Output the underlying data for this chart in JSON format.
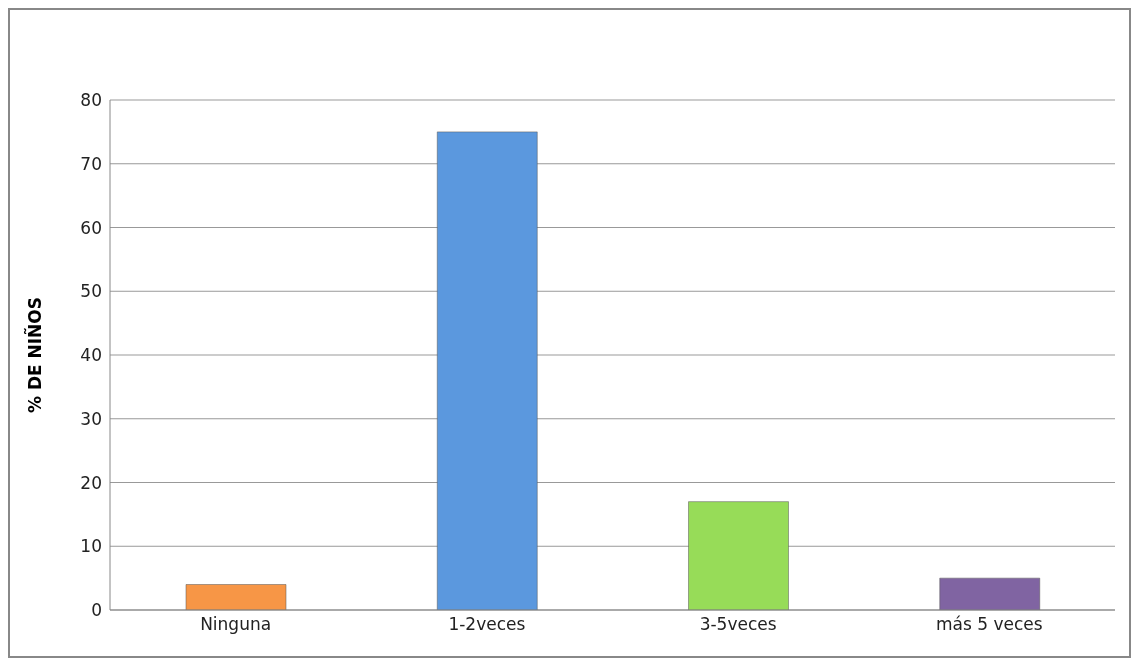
{
  "chart_data": {
    "type": "bar",
    "ylabel": "% DE NIÑOS",
    "categories": [
      "Ninguna",
      "1-2veces",
      "3-5veces",
      "más 5 veces"
    ],
    "values": [
      4,
      75,
      17,
      5
    ],
    "colors": [
      "#f79646",
      "#5b98de",
      "#97dc58",
      "#8064a2"
    ],
    "ylim": [
      0,
      80
    ],
    "yticks": [
      0,
      10,
      20,
      30,
      40,
      50,
      60,
      70,
      80
    ],
    "grid": "y",
    "legend": false
  }
}
